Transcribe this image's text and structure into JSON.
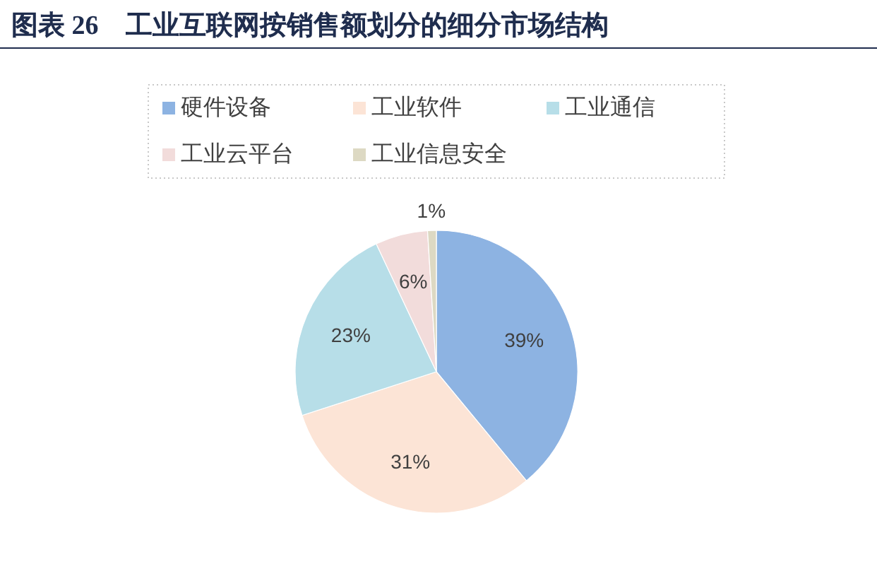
{
  "chart_data": {
    "type": "pie",
    "title": "图表 26　工业互联网按销售额划分的细分市场结构",
    "categories": [
      "硬件设备",
      "工业软件",
      "工业通信",
      "工业云平台",
      "工业信息安全"
    ],
    "values": [
      39,
      31,
      23,
      6,
      1
    ],
    "colors": [
      "#8db3e2",
      "#fce4d6",
      "#b7dee8",
      "#f2dcdb",
      "#ddd9c3"
    ],
    "value_labels": [
      "39%",
      "31%",
      "23%",
      "6%",
      "1%"
    ],
    "legend": "top"
  }
}
